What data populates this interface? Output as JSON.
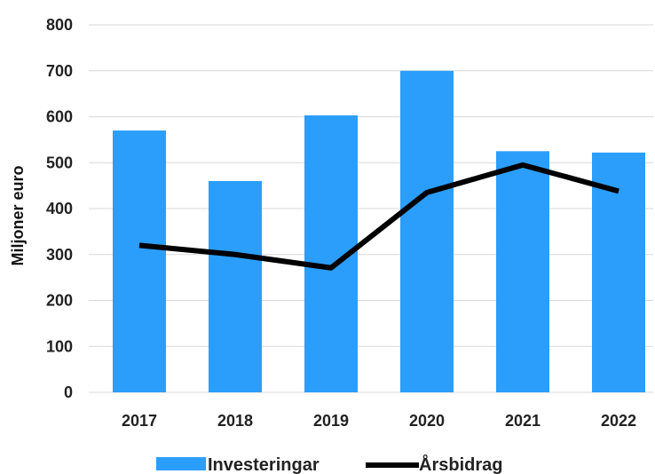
{
  "chart_data": {
    "type": "bar",
    "categories": [
      "2017",
      "2018",
      "2019",
      "2020",
      "2021",
      "2022"
    ],
    "series": [
      {
        "name": "Investeringar",
        "type": "bar",
        "values": [
          570,
          460,
          603,
          700,
          525,
          522
        ]
      },
      {
        "name": "Årsbidrag",
        "type": "line",
        "values": [
          320,
          300,
          271,
          435,
          495,
          438
        ]
      }
    ],
    "ylabel": "Miljoner  euro",
    "xlabel": "",
    "ylim": [
      0,
      800
    ],
    "yticks": [
      "0",
      "100",
      "200",
      "300",
      "400",
      "500",
      "600",
      "700",
      "800"
    ],
    "grid": true,
    "legend_position": "bottom",
    "colors": {
      "bar": "#2B9EFB",
      "line": "#000000",
      "grid": "#D9D9D9"
    }
  }
}
